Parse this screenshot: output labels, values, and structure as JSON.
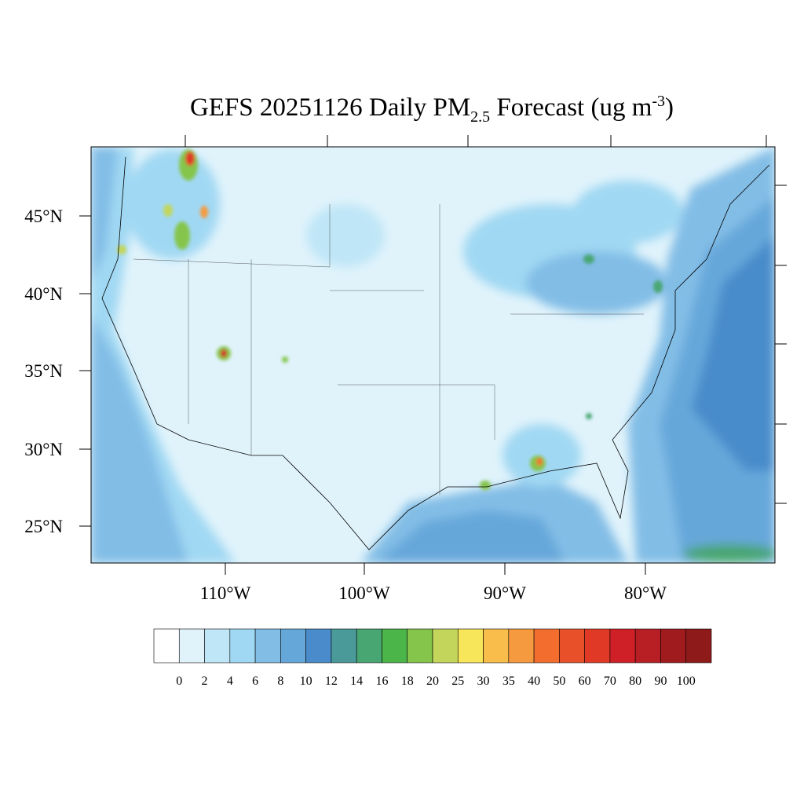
{
  "title": {
    "main": "GEFS 20251126 Daily PM",
    "sub": "2.5",
    "after": " Forecast (ug m",
    "sup": "-3",
    "end": ")"
  },
  "lat_labels": [
    "45°N",
    "40°N",
    "35°N",
    "30°N",
    "25°N"
  ],
  "lon_labels": [
    "110°W",
    "100°W",
    "90°W",
    "80°W"
  ],
  "legend": {
    "levels": [
      0,
      2,
      4,
      6,
      8,
      10,
      12,
      14,
      16,
      18,
      20,
      25,
      30,
      35,
      40,
      50,
      60,
      70,
      80,
      90,
      100
    ],
    "colors": [
      "#ffffff",
      "#e0f3fb",
      "#bfe6f7",
      "#a0d8f3",
      "#82bde6",
      "#66a7da",
      "#4a8ccb",
      "#4a9a9a",
      "#48a672",
      "#4bb54a",
      "#85c54c",
      "#c3d65b",
      "#f7e65a",
      "#f8bd4a",
      "#f59a3e",
      "#f26d2e",
      "#e8502a",
      "#e03a26",
      "#d02027",
      "#b81f25",
      "#a01b1e",
      "#8e1a1a"
    ]
  }
}
